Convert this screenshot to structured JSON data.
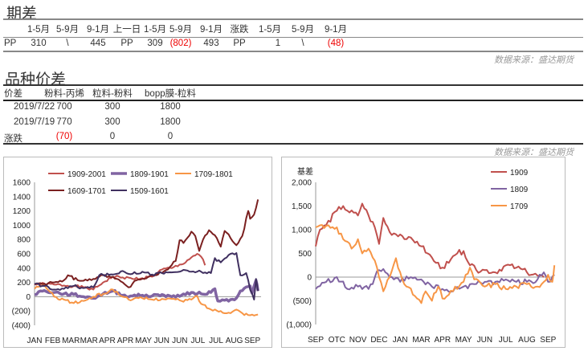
{
  "spread": {
    "title": "期差",
    "headers": [
      "1-5月",
      "5-9月",
      "9-1月",
      "上一日",
      "1-5月",
      "5-9月",
      "9-1月",
      "涨跌",
      "1-5月",
      "5-9月",
      "9-1月"
    ],
    "row": [
      "PP",
      "310",
      "\\",
      "445",
      "PP",
      "309",
      "(802)",
      "493",
      "PP",
      "1",
      "\\",
      "(48)"
    ],
    "source": "数据来源：盛达期货"
  },
  "variety": {
    "title": "品种价差",
    "headers": [
      "价差",
      "粉料-丙烯",
      "粒料-粉料",
      "bopp膜-粒料"
    ],
    "rows": [
      [
        "2019/7/22",
        "700",
        "300",
        "1800"
      ],
      [
        "2019/7/19",
        "770",
        "300",
        "1800"
      ],
      [
        "涨跌",
        "(70)",
        "0",
        "0"
      ]
    ],
    "source": "数据来源：盛达期货"
  },
  "chart_data": [
    {
      "type": "line",
      "title": "",
      "categories": [
        "JAN",
        "FEB",
        "MAR",
        "MAR",
        "APR",
        "APR",
        "MAY",
        "JUN",
        "JUN",
        "JUL",
        "JUL",
        "AUG",
        "SEP"
      ],
      "y_ticks": [
        "1600",
        "1400",
        "1200",
        "1000",
        "800",
        "600",
        "400",
        "200",
        "0",
        "(200)",
        "(400)"
      ],
      "ylim": [
        -400,
        1600
      ],
      "legend": "top",
      "series": [
        {
          "name": "1909-2001",
          "color": "#c0504d",
          "width": 2,
          "points": [
            [
              0,
              180
            ],
            [
              1,
              170
            ],
            [
              2,
              150
            ],
            [
              2.5,
              130
            ],
            [
              3,
              100
            ],
            [
              3.5,
              200
            ],
            [
              4,
              280
            ],
            [
              4.5,
              270
            ],
            [
              5,
              250
            ],
            [
              5.5,
              260
            ],
            [
              6,
              280
            ],
            [
              6.5,
              380
            ],
            [
              7,
              400
            ],
            [
              7.5,
              450
            ],
            [
              8,
              550
            ],
            [
              8.3,
              600
            ],
            [
              8.5,
              560
            ],
            [
              8.7,
              440
            ]
          ]
        },
        {
          "name": "1809-1901",
          "color": "#8064a2",
          "width": 3.5,
          "points": [
            [
              0,
              30
            ],
            [
              0.3,
              80
            ],
            [
              1,
              60
            ],
            [
              1.5,
              40
            ],
            [
              2,
              30
            ],
            [
              2.5,
              0
            ],
            [
              3,
              -20
            ],
            [
              3.5,
              40
            ],
            [
              4,
              80
            ],
            [
              4.5,
              20
            ],
            [
              5,
              10
            ],
            [
              5.5,
              20
            ],
            [
              6,
              10
            ],
            [
              6.5,
              30
            ],
            [
              7,
              0
            ],
            [
              7.5,
              20
            ],
            [
              8,
              60
            ],
            [
              8.5,
              40
            ],
            [
              9,
              60
            ],
            [
              9.2,
              110
            ],
            [
              9.35,
              -60
            ],
            [
              9.7,
              -50
            ],
            [
              10,
              -40
            ],
            [
              10.3,
              -20
            ],
            [
              10.5,
              80
            ],
            [
              11,
              150
            ],
            [
              11.1,
              50
            ],
            [
              11.3,
              230
            ],
            [
              11.4,
              80
            ]
          ]
        },
        {
          "name": "1709-1801",
          "color": "#f79646",
          "width": 2,
          "points": [
            [
              0,
              110
            ],
            [
              0.5,
              160
            ],
            [
              1,
              0
            ],
            [
              1.5,
              -40
            ],
            [
              2,
              -90
            ],
            [
              2.5,
              -60
            ],
            [
              3,
              0
            ],
            [
              3.5,
              40
            ],
            [
              4,
              100
            ],
            [
              4.5,
              0
            ],
            [
              5,
              -40
            ],
            [
              5.5,
              -20
            ],
            [
              6,
              -40
            ],
            [
              6.5,
              -30
            ],
            [
              7,
              -30
            ],
            [
              7.5,
              -60
            ],
            [
              8,
              -40
            ],
            [
              8.3,
              10
            ],
            [
              8.5,
              -100
            ],
            [
              9,
              -180
            ],
            [
              9.5,
              -200
            ],
            [
              10,
              -230
            ],
            [
              10.3,
              -180
            ],
            [
              10.6,
              -230
            ],
            [
              11,
              -260
            ],
            [
              11.4,
              -250
            ]
          ]
        },
        {
          "name": "1609-1701",
          "color": "#7b2020",
          "width": 2,
          "points": [
            [
              0,
              170
            ],
            [
              0.5,
              180
            ],
            [
              1,
              200
            ],
            [
              1.5,
              230
            ],
            [
              1.7,
              300
            ],
            [
              2.2,
              230
            ],
            [
              3,
              250
            ],
            [
              3.5,
              300
            ],
            [
              4,
              280
            ],
            [
              4.5,
              200
            ],
            [
              4.8,
              130
            ],
            [
              5.2,
              230
            ],
            [
              6.2,
              300
            ],
            [
              6.8,
              380
            ],
            [
              7.2,
              500
            ],
            [
              7.4,
              790
            ],
            [
              7.6,
              750
            ],
            [
              8,
              910
            ],
            [
              8.2,
              850
            ],
            [
              8.4,
              640
            ],
            [
              8.6,
              800
            ],
            [
              8.9,
              930
            ],
            [
              9.2,
              860
            ],
            [
              9.5,
              700
            ],
            [
              9.7,
              920
            ],
            [
              10,
              820
            ],
            [
              10.3,
              720
            ],
            [
              10.6,
              850
            ],
            [
              10.9,
              1200
            ],
            [
              11,
              1090
            ],
            [
              11.2,
              1150
            ],
            [
              11.4,
              1360
            ]
          ]
        },
        {
          "name": "1509-1601",
          "color": "#403060",
          "width": 2,
          "points": [
            [
              0,
              180
            ],
            [
              0.5,
              150
            ],
            [
              1,
              100
            ],
            [
              1.5,
              110
            ],
            [
              2,
              150
            ],
            [
              2.5,
              120
            ],
            [
              3,
              130
            ],
            [
              3.3,
              300
            ],
            [
              4,
              310
            ],
            [
              4.5,
              360
            ],
            [
              5,
              320
            ],
            [
              5.5,
              350
            ],
            [
              6,
              310
            ],
            [
              6.5,
              330
            ],
            [
              7,
              340
            ],
            [
              7.5,
              360
            ],
            [
              8,
              350
            ],
            [
              8.5,
              350
            ],
            [
              9,
              330
            ],
            [
              9.2,
              540
            ],
            [
              9.5,
              480
            ],
            [
              10,
              600
            ],
            [
              10.3,
              610
            ],
            [
              10.5,
              300
            ],
            [
              10.8,
              330
            ],
            [
              11,
              100
            ],
            [
              11.2,
              -40
            ],
            [
              11.3,
              250
            ],
            [
              11.4,
              80
            ]
          ]
        }
      ]
    },
    {
      "type": "line",
      "ylabel": "基差",
      "categories": [
        "SEP",
        "OTC",
        "NOV",
        "DEC",
        "JAN",
        "MAR",
        "APR",
        "MAY",
        "JUN",
        "JUL",
        "AUG",
        "SEP"
      ],
      "y_ticks": [
        "2,000",
        "1,500",
        "1,000",
        "500",
        "0",
        "(500)",
        "(1,000)"
      ],
      "ylim": [
        -1000,
        2000
      ],
      "legend": "right",
      "series": [
        {
          "name": "1909",
          "color": "#c0504d",
          "width": 2,
          "points": [
            [
              0,
              650
            ],
            [
              0.2,
              1000
            ],
            [
              0.5,
              1100
            ],
            [
              1,
              1400
            ],
            [
              1.3,
              1500
            ],
            [
              1.5,
              1400
            ],
            [
              2,
              1300
            ],
            [
              2.2,
              1550
            ],
            [
              2.5,
              1300
            ],
            [
              2.8,
              1050
            ],
            [
              3,
              700
            ],
            [
              3.2,
              1250
            ],
            [
              3.5,
              950
            ],
            [
              4,
              900
            ],
            [
              4.3,
              800
            ],
            [
              4.8,
              750
            ],
            [
              5,
              650
            ],
            [
              5.3,
              500
            ],
            [
              5.7,
              300
            ],
            [
              6,
              200
            ],
            [
              6.3,
              300
            ],
            [
              6.7,
              500
            ],
            [
              7,
              550
            ],
            [
              7.3,
              250
            ],
            [
              7.6,
              150
            ],
            [
              8,
              150
            ],
            [
              8.5,
              100
            ],
            [
              9,
              250
            ],
            [
              9.5,
              200
            ],
            [
              10,
              100
            ],
            [
              10.5,
              30
            ],
            [
              10.8,
              0
            ]
          ]
        },
        {
          "name": "1809",
          "color": "#8064a2",
          "width": 2,
          "points": [
            [
              0,
              -250
            ],
            [
              0.5,
              -100
            ],
            [
              1,
              0
            ],
            [
              1.5,
              -250
            ],
            [
              2,
              -200
            ],
            [
              2.5,
              -250
            ],
            [
              3,
              150
            ],
            [
              3.3,
              100
            ],
            [
              3.7,
              -50
            ],
            [
              4,
              -100
            ],
            [
              4.5,
              0
            ],
            [
              5,
              -50
            ],
            [
              5.5,
              -200
            ],
            [
              6,
              -250
            ],
            [
              6.5,
              -300
            ],
            [
              7,
              -200
            ],
            [
              7.5,
              -150
            ],
            [
              8,
              -100
            ],
            [
              8.5,
              -100
            ],
            [
              9,
              -50
            ],
            [
              9.5,
              -100
            ],
            [
              10,
              -100
            ],
            [
              10.5,
              -50
            ],
            [
              10.8,
              100
            ],
            [
              11,
              -100
            ],
            [
              11.3,
              50
            ]
          ]
        },
        {
          "name": "1709",
          "color": "#f79646",
          "width": 2,
          "points": [
            [
              0,
              1050
            ],
            [
              0.3,
              1100
            ],
            [
              1,
              1050
            ],
            [
              1.3,
              800
            ],
            [
              1.7,
              600
            ],
            [
              2,
              800
            ],
            [
              2.2,
              500
            ],
            [
              2.5,
              600
            ],
            [
              2.8,
              350
            ],
            [
              3,
              0
            ],
            [
              3.2,
              -300
            ],
            [
              3.5,
              0
            ],
            [
              3.8,
              400
            ],
            [
              4,
              100
            ],
            [
              4.3,
              -200
            ],
            [
              4.7,
              -400
            ],
            [
              5,
              -550
            ],
            [
              5.2,
              -300
            ],
            [
              5.5,
              -500
            ],
            [
              5.8,
              -200
            ],
            [
              6,
              -450
            ],
            [
              6.5,
              -300
            ],
            [
              7,
              -100
            ],
            [
              7.3,
              200
            ],
            [
              7.5,
              -50
            ],
            [
              8,
              -200
            ],
            [
              8.5,
              -150
            ],
            [
              9,
              -250
            ],
            [
              9.5,
              -200
            ],
            [
              10,
              -150
            ],
            [
              10.5,
              -200
            ],
            [
              10.8,
              -100
            ],
            [
              11,
              50
            ],
            [
              11.2,
              -100
            ],
            [
              11.3,
              250
            ]
          ]
        }
      ]
    }
  ]
}
